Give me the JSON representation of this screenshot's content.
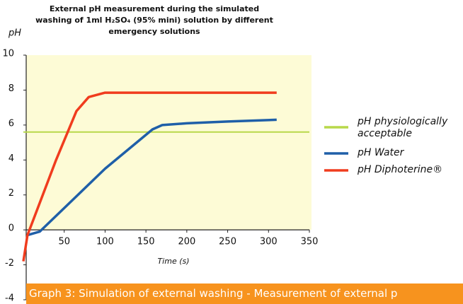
{
  "chart_data": {
    "type": "line",
    "title": "External pH measurement during the simulated\nwashing of 1ml H₂SO₄ (95% mini) solution by different\nemergency solutions",
    "y_label": "pH",
    "x_label": "Time (s)",
    "caption": "Graph 3: Simulation of external washing - Measurement of external p",
    "xlim": [
      0,
      350
    ],
    "ylim": [
      -4,
      10
    ],
    "xticks": [
      50,
      100,
      150,
      200,
      250,
      300,
      350
    ],
    "yticks": [
      -4,
      -2,
      0,
      2,
      4,
      6,
      8,
      10
    ],
    "legend": "right",
    "series": [
      {
        "name": "pH physiologically acceptable",
        "color": "#b8d84a",
        "x": [
          0,
          350
        ],
        "values": [
          5.6,
          5.6
        ]
      },
      {
        "name": "pH Water",
        "color": "#1f5fa8",
        "x": [
          5,
          20,
          60,
          100,
          158,
          170,
          200,
          250,
          310
        ],
        "values": [
          -0.3,
          -0.1,
          1.7,
          3.5,
          5.75,
          6.0,
          6.1,
          6.2,
          6.3
        ]
      },
      {
        "name": "pH Diphoterine®",
        "color": "#f03c1e",
        "x": [
          0,
          5,
          40,
          65,
          80,
          100,
          310
        ],
        "values": [
          -1.8,
          -0.3,
          4.0,
          6.8,
          7.6,
          7.85,
          7.85
        ]
      }
    ]
  }
}
